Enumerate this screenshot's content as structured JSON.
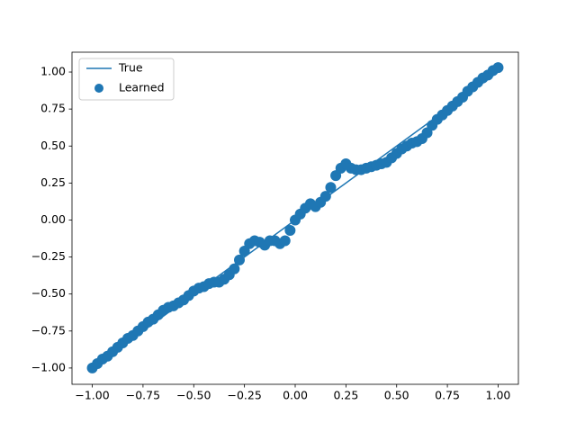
{
  "chart_data": {
    "type": "scatter",
    "xlim": [
      -1.1,
      1.1
    ],
    "ylim": [
      -1.11,
      1.134
    ],
    "xticks": [
      {
        "value": -1,
        "label": "−1.00"
      },
      {
        "value": -0.75,
        "label": "−0.75"
      },
      {
        "value": -0.5,
        "label": "−0.50"
      },
      {
        "value": -0.25,
        "label": "−0.25"
      },
      {
        "value": 0,
        "label": "0.00"
      },
      {
        "value": 0.25,
        "label": "0.25"
      },
      {
        "value": 0.5,
        "label": "0.50"
      },
      {
        "value": 0.75,
        "label": "0.75"
      },
      {
        "value": 1,
        "label": "1.00"
      }
    ],
    "yticks": [
      {
        "value": -1,
        "label": "−1.00"
      },
      {
        "value": -0.75,
        "label": "−0.75"
      },
      {
        "value": -0.5,
        "label": "−0.50"
      },
      {
        "value": -0.25,
        "label": "−0.25"
      },
      {
        "value": 0,
        "label": "0.00"
      },
      {
        "value": 0.25,
        "label": "0.25"
      },
      {
        "value": 0.5,
        "label": "0.50"
      },
      {
        "value": 0.75,
        "label": "0.75"
      },
      {
        "value": 1,
        "label": "1.00"
      }
    ],
    "legend": "upper left",
    "series": [
      {
        "name": "True",
        "style": "line",
        "color": "#1f77b4",
        "x": [
          -1,
          1
        ],
        "values": [
          -1,
          1
        ]
      },
      {
        "name": "Learned",
        "style": "marker",
        "color": "#1f77b4",
        "x": [
          -1,
          -0.975,
          -0.95,
          -0.925,
          -0.9,
          -0.875,
          -0.85,
          -0.825,
          -0.8,
          -0.775,
          -0.75,
          -0.725,
          -0.7,
          -0.675,
          -0.65,
          -0.625,
          -0.6,
          -0.575,
          -0.55,
          -0.525,
          -0.5,
          -0.475,
          -0.45,
          -0.425,
          -0.4,
          -0.375,
          -0.35,
          -0.325,
          -0.3,
          -0.275,
          -0.25,
          -0.225,
          -0.2,
          -0.175,
          -0.15,
          -0.125,
          -0.1,
          -0.075,
          -0.05,
          -0.025,
          0,
          0.025,
          0.05,
          0.075,
          0.1,
          0.125,
          0.15,
          0.175,
          0.2,
          0.225,
          0.25,
          0.275,
          0.3,
          0.325,
          0.35,
          0.375,
          0.4,
          0.425,
          0.45,
          0.475,
          0.5,
          0.525,
          0.55,
          0.575,
          0.6,
          0.625,
          0.65,
          0.675,
          0.7,
          0.725,
          0.75,
          0.775,
          0.8,
          0.825,
          0.85,
          0.875,
          0.9,
          0.925,
          0.95,
          0.975,
          1
        ],
        "values": [
          -1,
          -0.97,
          -0.94,
          -0.92,
          -0.89,
          -0.86,
          -0.83,
          -0.8,
          -0.78,
          -0.75,
          -0.72,
          -0.69,
          -0.67,
          -0.64,
          -0.61,
          -0.59,
          -0.58,
          -0.56,
          -0.54,
          -0.51,
          -0.48,
          -0.46,
          -0.45,
          -0.43,
          -0.42,
          -0.42,
          -0.4,
          -0.37,
          -0.33,
          -0.27,
          -0.21,
          -0.16,
          -0.14,
          -0.15,
          -0.17,
          -0.14,
          -0.14,
          -0.16,
          -0.14,
          -0.07,
          0,
          0.04,
          0.08,
          0.11,
          0.09,
          0.12,
          0.16,
          0.22,
          0.3,
          0.35,
          0.38,
          0.35,
          0.34,
          0.34,
          0.35,
          0.36,
          0.37,
          0.38,
          0.39,
          0.42,
          0.45,
          0.48,
          0.5,
          0.52,
          0.53,
          0.55,
          0.59,
          0.64,
          0.68,
          0.71,
          0.74,
          0.77,
          0.8,
          0.83,
          0.87,
          0.9,
          0.93,
          0.96,
          0.98,
          1.01,
          1.03
        ]
      }
    ]
  }
}
